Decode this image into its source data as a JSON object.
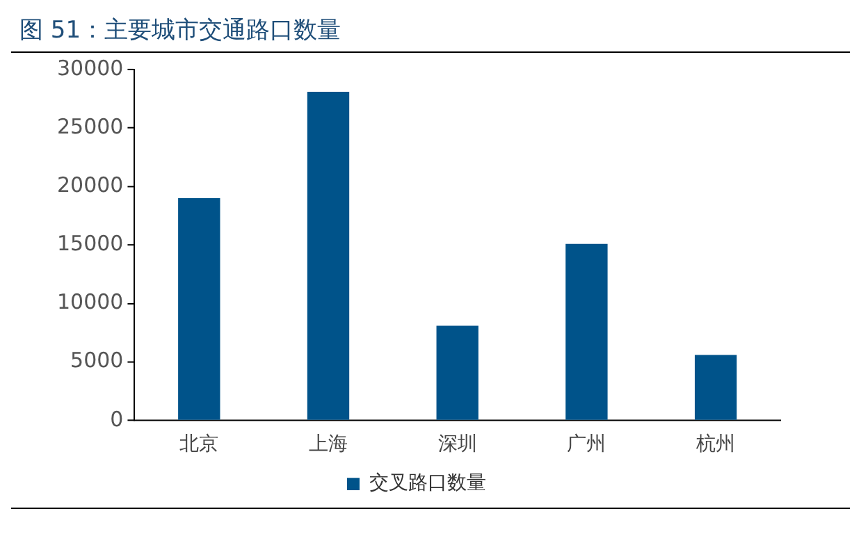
{
  "chart_data": {
    "type": "bar",
    "title": "图 51：主要城市交通路口数量",
    "categories": [
      "北京",
      "上海",
      "深圳",
      "广州",
      "杭州"
    ],
    "series": [
      {
        "name": "交叉路口数量",
        "color": "#00538a",
        "values": [
          19000,
          28100,
          8100,
          15100,
          5600
        ]
      }
    ],
    "ylim": [
      0,
      30000
    ],
    "yticks": [
      0,
      5000,
      10000,
      15000,
      20000,
      25000,
      30000
    ],
    "grid": false,
    "legend": "bottom"
  }
}
